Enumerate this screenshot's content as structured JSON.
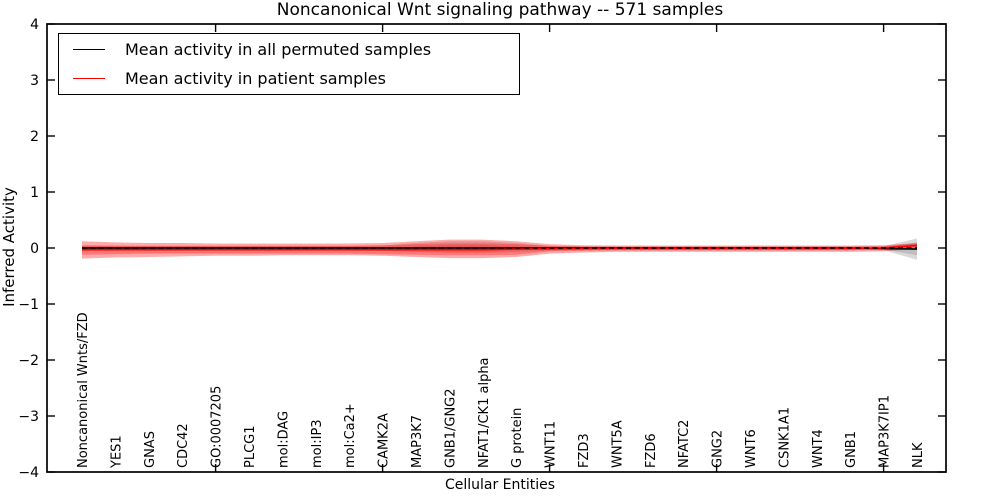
{
  "page": {
    "background": "#ffffff"
  },
  "chart_data": {
    "type": "line",
    "title": "Noncanonical Wnt signaling pathway -- 571 samples",
    "xlabel": "Cellular Entities",
    "ylabel": "Inferred Activity",
    "ylim": [
      -4,
      4
    ],
    "ytick_values": [
      4,
      3,
      2,
      1,
      0,
      -1,
      -2,
      -3,
      -4
    ],
    "ytick_labels": [
      "4",
      "3",
      "2",
      "1",
      "0",
      "−1",
      "−2",
      "−3",
      "−4"
    ],
    "xtick_indices": [
      4,
      9,
      14,
      19,
      24
    ],
    "grid": false,
    "legend_position": "upper left",
    "categories": [
      "Noncanonical Wnts/FZD",
      "YES1",
      "GNAS",
      "CDC42",
      "GO:0007205",
      "PLCG1",
      "mol:DAG",
      "mol:IP3",
      "mol:Ca2+",
      "CAMK2A",
      "MAP3K7",
      "GNB1/GNG2",
      "NFAT1/CK1 alpha",
      "G protein",
      "WNT11",
      "FZD3",
      "WNT5A",
      "FZD6",
      "NFATC2",
      "GNG2",
      "WNT6",
      "CSNK1A1",
      "WNT4",
      "GNB1",
      "MAP3K7IP1",
      "NLK"
    ],
    "legend": [
      {
        "label": "Mean activity in all permuted samples",
        "color": "#000000"
      },
      {
        "label": "Mean activity in patient samples",
        "color": "#ff0000"
      }
    ],
    "series": [
      {
        "name": "Mean activity in all permuted samples",
        "color": "#000000",
        "style": "solid",
        "values": [
          0,
          0,
          0,
          0,
          0,
          0,
          0,
          0,
          0,
          0,
          0,
          0,
          0,
          0,
          0,
          0,
          0,
          0,
          0,
          0,
          0,
          0,
          0,
          0,
          -0.01,
          -0.02
        ]
      },
      {
        "name": "Mean activity in patient samples",
        "color": "#ff0000",
        "style": "solid",
        "values": [
          -0.03,
          -0.03,
          -0.03,
          -0.03,
          -0.03,
          -0.03,
          -0.03,
          -0.03,
          -0.03,
          -0.03,
          -0.03,
          -0.03,
          -0.03,
          -0.02,
          -0.015,
          -0.01,
          -0.008,
          -0.008,
          -0.008,
          -0.008,
          -0.008,
          -0.008,
          -0.008,
          -0.005,
          0,
          0.045
        ]
      },
      {
        "name": "zero reference",
        "color": "#000000",
        "style": "dashed",
        "values": [
          0,
          0,
          0,
          0,
          0,
          0,
          0,
          0,
          0,
          0,
          0,
          0,
          0,
          0,
          0,
          0,
          0,
          0,
          0,
          0,
          0,
          0,
          0,
          0,
          0,
          0
        ]
      }
    ],
    "bands": [
      {
        "name": "permuted-outer",
        "color": "#808080",
        "opacity": 0.3,
        "upper": [
          0.04,
          0.035,
          0.035,
          0.035,
          0.035,
          0.035,
          0.035,
          0.035,
          0.035,
          0.045,
          0.09,
          0.12,
          0.12,
          0.09,
          0.04,
          0.03,
          0.03,
          0.03,
          0.03,
          0.03,
          0.03,
          0.03,
          0.03,
          0.03,
          0.03,
          0.17
        ],
        "lower": [
          -0.05,
          -0.045,
          -0.045,
          -0.045,
          -0.045,
          -0.045,
          -0.045,
          -0.045,
          -0.045,
          -0.05,
          -0.07,
          -0.09,
          -0.09,
          -0.07,
          -0.05,
          -0.04,
          -0.04,
          -0.04,
          -0.04,
          -0.04,
          -0.04,
          -0.04,
          -0.04,
          -0.04,
          -0.04,
          -0.21
        ]
      },
      {
        "name": "permuted-inner",
        "color": "#808080",
        "opacity": 0.3,
        "upper": [
          0.015,
          0.015,
          0.015,
          0.015,
          0.015,
          0.015,
          0.015,
          0.015,
          0.015,
          0.015,
          0.03,
          0.05,
          0.05,
          0.03,
          0.015,
          0.015,
          0.015,
          0.015,
          0.015,
          0.015,
          0.015,
          0.015,
          0.015,
          0.015,
          0.015,
          0.1
        ],
        "lower": [
          -0.025,
          -0.025,
          -0.025,
          -0.025,
          -0.025,
          -0.025,
          -0.025,
          -0.025,
          -0.025,
          -0.025,
          -0.04,
          -0.05,
          -0.05,
          -0.04,
          -0.025,
          -0.025,
          -0.025,
          -0.025,
          -0.025,
          -0.025,
          -0.025,
          -0.025,
          -0.025,
          -0.025,
          -0.025,
          -0.13
        ]
      },
      {
        "name": "patient-outer",
        "color": "#ff0000",
        "opacity": 0.33,
        "upper": [
          0.12,
          0.1,
          0.09,
          0.09,
          0.08,
          0.08,
          0.08,
          0.08,
          0.08,
          0.09,
          0.12,
          0.15,
          0.15,
          0.12,
          0.07,
          0.05,
          0.045,
          0.045,
          0.045,
          0.045,
          0.045,
          0.045,
          0.045,
          0.045,
          0.05,
          0.09
        ],
        "lower": [
          -0.19,
          -0.17,
          -0.16,
          -0.15,
          -0.14,
          -0.14,
          -0.13,
          -0.13,
          -0.13,
          -0.14,
          -0.16,
          -0.18,
          -0.18,
          -0.16,
          -0.1,
          -0.08,
          -0.07,
          -0.07,
          -0.07,
          -0.07,
          -0.07,
          -0.07,
          -0.07,
          -0.07,
          -0.06,
          -0.01
        ]
      },
      {
        "name": "patient-inner",
        "color": "#ff0000",
        "opacity": 0.3,
        "upper": [
          0.05,
          0.045,
          0.04,
          0.04,
          0.04,
          0.04,
          0.04,
          0.04,
          0.04,
          0.05,
          0.07,
          0.08,
          0.08,
          0.07,
          0.035,
          0.025,
          0.02,
          0.02,
          0.02,
          0.02,
          0.02,
          0.02,
          0.02,
          0.02,
          0.03,
          0.075
        ],
        "lower": [
          -0.12,
          -0.11,
          -0.1,
          -0.1,
          -0.1,
          -0.1,
          -0.1,
          -0.1,
          -0.1,
          -0.11,
          -0.12,
          -0.13,
          -0.13,
          -0.12,
          -0.06,
          -0.05,
          -0.04,
          -0.04,
          -0.04,
          -0.04,
          -0.04,
          -0.04,
          -0.04,
          -0.04,
          -0.02,
          0.015
        ]
      }
    ]
  }
}
